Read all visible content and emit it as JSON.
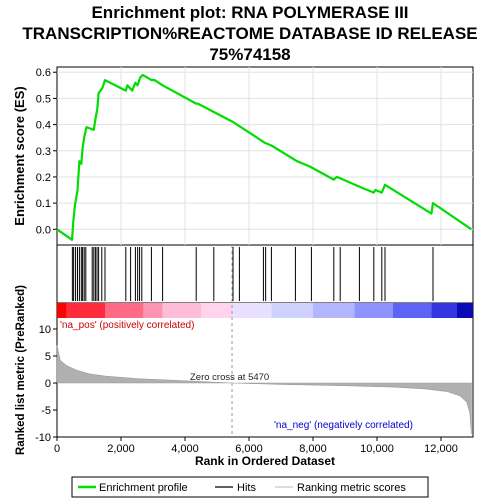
{
  "chart_data": {
    "title_lines": [
      "Enrichment plot: RNA POLYMERASE III",
      "TRANSCRIPTION%REACTOME DATABASE ID RELEASE",
      "75%74158"
    ],
    "type": "line",
    "x_label": "Rank in Ordered Dataset",
    "x_range": [
      0,
      13000
    ],
    "x_ticks": [
      0,
      2000,
      4000,
      6000,
      8000,
      10000,
      12000
    ],
    "x_tick_labels": [
      "0",
      "2,000",
      "4,000",
      "6,000",
      "8,000",
      "10,000",
      "12,000"
    ],
    "enrichment_panel": {
      "ylabel": "Enrichment score (ES)",
      "ylim": [
        -0.06,
        0.62
      ],
      "y_ticks": [
        0.0,
        0.1,
        0.2,
        0.3,
        0.4,
        0.5,
        0.6
      ],
      "y_tick_labels": [
        "0.0",
        "0.1",
        "0.2",
        "0.3",
        "0.4",
        "0.5",
        "0.6"
      ],
      "series_name": "Enrichment profile",
      "line_color": "#00dd00",
      "points": [
        [
          0,
          0.0
        ],
        [
          470,
          -0.04
        ],
        [
          510,
          0.03
        ],
        [
          560,
          0.09
        ],
        [
          640,
          0.15
        ],
        [
          700,
          0.26
        ],
        [
          760,
          0.25
        ],
        [
          800,
          0.31
        ],
        [
          850,
          0.35
        ],
        [
          920,
          0.39
        ],
        [
          1150,
          0.38
        ],
        [
          1200,
          0.42
        ],
        [
          1260,
          0.46
        ],
        [
          1300,
          0.52
        ],
        [
          1420,
          0.54
        ],
        [
          1500,
          0.57
        ],
        [
          2150,
          0.53
        ],
        [
          2200,
          0.55
        ],
        [
          2350,
          0.53
        ],
        [
          2450,
          0.56
        ],
        [
          2520,
          0.55
        ],
        [
          2600,
          0.58
        ],
        [
          2680,
          0.59
        ],
        [
          2950,
          0.57
        ],
        [
          3050,
          0.57
        ],
        [
          3300,
          0.55
        ],
        [
          4350,
          0.48
        ],
        [
          4400,
          0.48
        ],
        [
          5500,
          0.41
        ],
        [
          6500,
          0.33
        ],
        [
          6700,
          0.32
        ],
        [
          7500,
          0.26
        ],
        [
          7900,
          0.24
        ],
        [
          8650,
          0.19
        ],
        [
          8750,
          0.2
        ],
        [
          9500,
          0.16
        ],
        [
          9900,
          0.14
        ],
        [
          9950,
          0.15
        ],
        [
          10150,
          0.14
        ],
        [
          10250,
          0.17
        ],
        [
          11700,
          0.06
        ],
        [
          11750,
          0.1
        ],
        [
          12950,
          0.0
        ]
      ]
    },
    "hits": [
      480,
      520,
      580,
      640,
      700,
      760,
      800,
      850,
      900,
      1100,
      1150,
      1200,
      1250,
      1300,
      1400,
      1500,
      2150,
      2300,
      2450,
      2520,
      2580,
      2650,
      2950,
      3300,
      4350,
      4900,
      5500,
      5700,
      6450,
      6520,
      6700,
      7450,
      7950,
      8650,
      8850,
      9450,
      9900,
      10150,
      10250,
      11750
    ],
    "color_bar": {
      "segments": [
        {
          "from": 0,
          "to": 300,
          "color": "#ff0000"
        },
        {
          "from": 300,
          "to": 1500,
          "color": "#ff2b3c"
        },
        {
          "from": 1500,
          "to": 2700,
          "color": "#ff6a87"
        },
        {
          "from": 2700,
          "to": 3300,
          "color": "#ff94b0"
        },
        {
          "from": 3300,
          "to": 4500,
          "color": "#ffbcd8"
        },
        {
          "from": 4500,
          "to": 5470,
          "color": "#ffd4ec"
        },
        {
          "from": 5470,
          "to": 6700,
          "color": "#e8e0ff"
        },
        {
          "from": 6700,
          "to": 8000,
          "color": "#cfd2ff"
        },
        {
          "from": 8000,
          "to": 9300,
          "color": "#b2b5ff"
        },
        {
          "from": 9300,
          "to": 10500,
          "color": "#8f93ff"
        },
        {
          "from": 10500,
          "to": 11700,
          "color": "#5f63f5"
        },
        {
          "from": 11700,
          "to": 12500,
          "color": "#3436e0"
        },
        {
          "from": 12500,
          "to": 13000,
          "color": "#0a0ab8"
        }
      ]
    },
    "metric_panel": {
      "ylabel": "Ranked list metric (PreRanked)",
      "ylim": [
        -10,
        10
      ],
      "y_ticks": [
        -10,
        -5,
        0,
        5,
        10
      ],
      "y_tick_labels": [
        "-10",
        "-5",
        "0",
        "5",
        "10"
      ],
      "curve": [
        [
          0,
          7
        ],
        [
          100,
          4.2
        ],
        [
          300,
          3.2
        ],
        [
          600,
          2.4
        ],
        [
          1000,
          1.7
        ],
        [
          1500,
          1.3
        ],
        [
          2500,
          0.8
        ],
        [
          4000,
          0.4
        ],
        [
          5470,
          0.0
        ],
        [
          7000,
          -0.25
        ],
        [
          9000,
          -0.5
        ],
        [
          10500,
          -0.75
        ],
        [
          11500,
          -1.1
        ],
        [
          12200,
          -1.6
        ],
        [
          12600,
          -2.4
        ],
        [
          12800,
          -3.5
        ],
        [
          12900,
          -5.5
        ],
        [
          12950,
          -9.5
        ]
      ],
      "fill_color": "#b0b0b0",
      "pos_label": "'na_pos' (positively correlated)",
      "neg_label": "'na_neg' (negatively correlated)",
      "zero_cross_label": "Zero cross at 5470",
      "zero_cross_x": 5470
    },
    "legend": [
      {
        "label": "Enrichment profile",
        "kind": "line",
        "color": "#00dd00"
      },
      {
        "label": "Hits",
        "kind": "line",
        "color": "#000000"
      },
      {
        "label": "Ranking metric scores",
        "kind": "line",
        "color": "#c8c8c8"
      }
    ]
  }
}
